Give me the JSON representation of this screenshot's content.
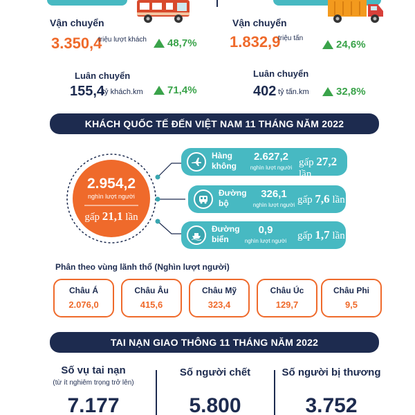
{
  "transport": {
    "passenger": {
      "volume_label": "Vận chuyển",
      "volume_value": "3.350,4",
      "volume_unit": "triệu lượt khách",
      "volume_growth": "48,7%",
      "turnover_label": "Luân chuyển",
      "turnover_value": "155,4",
      "turnover_unit": "tỷ khách.km",
      "turnover_growth": "71,4%"
    },
    "freight": {
      "volume_label": "Vận chuyển",
      "volume_value": "1.832,9",
      "volume_unit": "triệu tấn",
      "volume_growth": "24,6%",
      "turnover_label": "Luân chuyển",
      "turnover_value": "402",
      "turnover_unit": "tỷ tấn.km",
      "turnover_growth": "32,8%"
    }
  },
  "visitors": {
    "title": "KHÁCH QUỐC TẾ ĐẾN VIỆT NAM 11 THÁNG NĂM 2022",
    "total_value": "2.954,2",
    "total_unit": "nghìn lượt người",
    "total_times_prefix": "gấp",
    "total_times_value": "21,1",
    "total_times_suffix": "lần",
    "modes": [
      {
        "name_line1": "Hàng",
        "name_line2": "không",
        "value": "2.627,2",
        "unit": "nghìn lượt người",
        "times_prefix": "gấp",
        "times_value": "27,2",
        "times_suffix": "lần",
        "icon": "airplane-icon"
      },
      {
        "name_line1": "Đường",
        "name_line2": "bộ",
        "value": "326,1",
        "unit": "nghìn lượt người",
        "times_prefix": "gấp",
        "times_value": "7,6",
        "times_suffix": "lần",
        "icon": "bus-icon"
      },
      {
        "name_line1": "Đường",
        "name_line2": "biển",
        "value": "0,9",
        "unit": "nghìn lượt người",
        "times_prefix": "gấp",
        "times_value": "1,7",
        "times_suffix": "lần",
        "icon": "ship-icon"
      }
    ],
    "region_heading": "Phân theo vùng lãnh thổ (Nghìn lượt người)",
    "regions": [
      {
        "name": "Châu Á",
        "value": "2.076,0"
      },
      {
        "name": "Châu Âu",
        "value": "415,6"
      },
      {
        "name": "Châu Mỹ",
        "value": "323,4"
      },
      {
        "name": "Châu Úc",
        "value": "129,7"
      },
      {
        "name": "Châu Phi",
        "value": "9,5"
      }
    ]
  },
  "accidents": {
    "title": "TAI NẠN GIAO THÔNG 11 THÁNG NĂM 2022",
    "stats": [
      {
        "label": "Số vụ tai nạn",
        "sublabel": "(từ ít nghiêm trọng trở lên)",
        "value": "7.177"
      },
      {
        "label": "Số người chết",
        "sublabel": "",
        "value": "5.800"
      },
      {
        "label": "Số người bị thương",
        "sublabel": "",
        "value": "3.752"
      }
    ]
  },
  "colors": {
    "navy": "#1d2b4f",
    "orange": "#ef6a2b",
    "teal": "#47b9c2",
    "green": "#3aa34a"
  }
}
